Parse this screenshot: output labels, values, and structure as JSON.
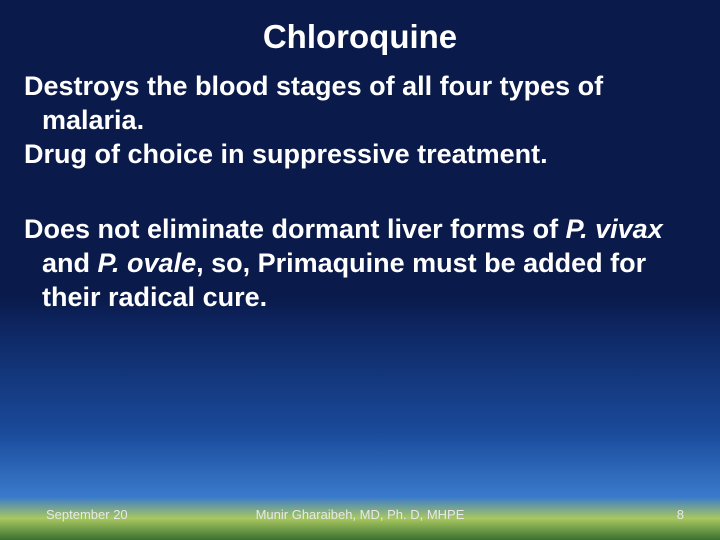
{
  "slide": {
    "title": "Chloroquine",
    "title_fontsize": 33,
    "title_color": "#ffffff",
    "body_fontsize": 27,
    "body_color": "#ffffff",
    "para1_line1": "Destroys the blood stages of all four types of",
    "para1_line2": "malaria.",
    "para2": "Drug of choice in suppressive  treatment.",
    "para3_a": "Does not eliminate dormant liver forms of ",
    "para3_b": "P. vivax",
    "para3_c": " and ",
    "para3_d": "P. ovale",
    "para3_e": ", so, Primaquine must be added for their radical cure."
  },
  "footer": {
    "date": "September 20",
    "author": "Munir Gharaibeh, MD, Ph. D, MHPE",
    "page": "8",
    "fontsize": 13
  },
  "colors": {
    "background_top": "#0a1a4a",
    "background_mid": "#1a4a9a",
    "background_bottom": "#3a7acc",
    "grass_light": "#a8c860",
    "grass_dark": "#3a7030",
    "text": "#ffffff"
  }
}
